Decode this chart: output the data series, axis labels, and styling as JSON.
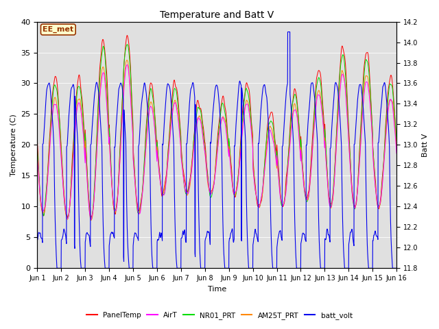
{
  "title": "Temperature and Batt V",
  "xlabel": "Time",
  "ylabel_left": "Temperature (C)",
  "ylabel_right": "Batt V",
  "ylim_left": [
    0,
    40
  ],
  "ylim_right": [
    11.8,
    14.2
  ],
  "bg_color": "#e0e0e0",
  "annotation_text": "EE_met",
  "annotation_bg": "#ffffcc",
  "annotation_border": "#993300",
  "series_colors": {
    "PanelTemp": "#ff0000",
    "AirT": "#ff00ff",
    "NR01_PRT": "#00dd00",
    "AM25T_PRT": "#ff8800",
    "batt_volt": "#0000ee"
  },
  "x_tick_labels": [
    "Jun 1",
    "Jun 2",
    "Jun 3",
    "Jun 4",
    "Jun 5",
    "Jun 6",
    "Jun 7",
    "Jun 8",
    "Jun 9",
    "Jun 10",
    "Jun 11",
    "Jun 12",
    "Jun 13",
    "Jun 14",
    "Jun 15",
    "Jun 16"
  ],
  "n_days": 15,
  "pts_per_day": 144,
  "day_peaks": [
    31,
    31,
    37,
    38,
    30,
    30,
    27,
    27,
    30,
    25,
    29,
    32,
    36,
    35,
    31
  ],
  "day_mins": [
    9,
    8,
    8,
    9,
    9,
    12,
    12,
    12,
    12,
    10,
    10,
    11,
    10,
    10,
    10
  ]
}
